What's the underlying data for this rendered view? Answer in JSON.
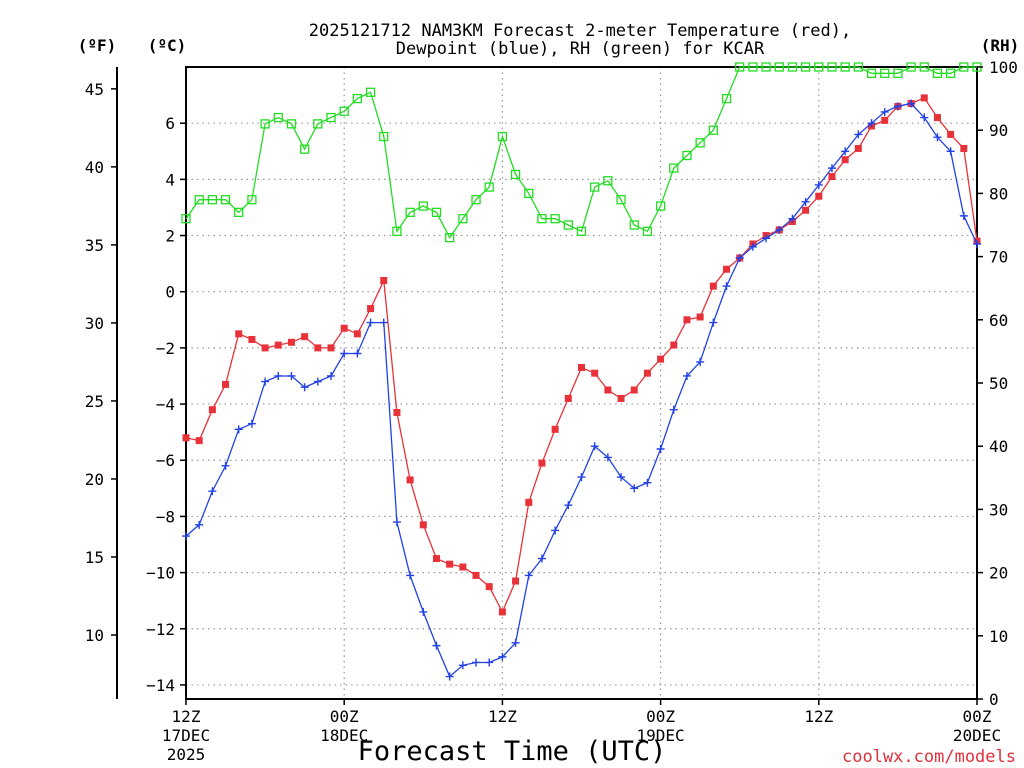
{
  "chart_data": {
    "type": "line",
    "title_line1": "2025121712 NAM3KM Forecast 2-meter Temperature (red),",
    "title_line2": "Dewpoint (blue), RH (green) for KCAR",
    "left_axis_f_label": "(ºF)",
    "left_axis_c_label": "(ºC)",
    "right_axis_label": "(RH)",
    "xlabel": "Forecast Time (UTC)",
    "credit": "coolwx.com/models",
    "xlim_hours": [
      0,
      60
    ],
    "ylim_c": [
      -14.5,
      8.0
    ],
    "rh_lim": [
      0,
      100
    ],
    "f_ticks": [
      "45",
      "40",
      "35",
      "30",
      "25",
      "20",
      "15",
      "10"
    ],
    "c_ticks": [
      "6",
      "4",
      "2",
      "0",
      "−2",
      "−4",
      "−6",
      "−8",
      "−10",
      "−12",
      "−14"
    ],
    "rh_ticks": [
      "100",
      "90",
      "80",
      "70",
      "60",
      "50",
      "40",
      "30",
      "20",
      "10",
      "0"
    ],
    "x_ticks": [
      {
        "hour": 0,
        "line1": "12Z",
        "line2": "17DEC",
        "line3": "2025"
      },
      {
        "hour": 12,
        "line1": "00Z",
        "line2": "18DEC",
        "line3": ""
      },
      {
        "hour": 24,
        "line1": "12Z",
        "line2": "",
        "line3": ""
      },
      {
        "hour": 36,
        "line1": "00Z",
        "line2": "19DEC",
        "line3": ""
      },
      {
        "hour": 48,
        "line1": "12Z",
        "line2": "",
        "line3": ""
      },
      {
        "hour": 60,
        "line1": "00Z",
        "line2": "20DEC",
        "line3": ""
      }
    ],
    "hours": [
      0,
      1,
      2,
      3,
      4,
      5,
      6,
      7,
      8,
      9,
      10,
      11,
      12,
      13,
      14,
      15,
      16,
      17,
      18,
      19,
      20,
      21,
      22,
      23,
      24,
      25,
      26,
      27,
      28,
      29,
      30,
      31,
      32,
      33,
      34,
      35,
      36,
      37,
      38,
      39,
      40,
      41,
      42,
      43,
      44,
      45,
      46,
      47,
      48,
      49,
      50,
      51,
      52,
      53,
      54,
      55,
      56,
      57,
      58,
      59,
      60
    ],
    "series": [
      {
        "name": "2-meter Temperature",
        "color": "#e8323a",
        "marker": "filled-square",
        "units": "C",
        "values": [
          -5.2,
          -5.3,
          -4.2,
          -3.3,
          -1.5,
          -1.7,
          -2.0,
          -1.9,
          -1.8,
          -1.6,
          -2.0,
          -2.0,
          -1.3,
          -1.5,
          -0.6,
          0.4,
          -4.3,
          -6.7,
          -8.3,
          -9.5,
          -9.7,
          -9.8,
          -10.1,
          -10.5,
          -11.4,
          -10.3,
          -7.5,
          -6.1,
          -4.9,
          -3.8,
          -2.7,
          -2.9,
          -3.5,
          -3.8,
          -3.5,
          -2.9,
          -2.4,
          -1.9,
          -1.0,
          -0.9,
          0.2,
          0.8,
          1.2,
          1.7,
          2.0,
          2.2,
          2.5,
          2.9,
          3.4,
          4.1,
          4.7,
          5.1,
          5.9,
          6.1,
          6.6,
          6.7,
          6.9,
          6.2,
          5.6,
          5.1,
          1.8
        ]
      },
      {
        "name": "Dewpoint",
        "color": "#2242e6",
        "marker": "plus",
        "units": "C",
        "values": [
          -8.7,
          -8.3,
          -7.1,
          -6.2,
          -4.9,
          -4.7,
          -3.2,
          -3.0,
          -3.0,
          -3.4,
          -3.2,
          -3.0,
          -2.2,
          -2.2,
          -1.1,
          -1.1,
          -8.2,
          -10.1,
          -11.4,
          -12.6,
          -13.7,
          -13.3,
          -13.2,
          -13.2,
          -13.0,
          -12.5,
          -10.1,
          -9.5,
          -8.5,
          -7.6,
          -6.6,
          -5.5,
          -5.9,
          -6.6,
          -7.0,
          -6.8,
          -5.6,
          -4.2,
          -3.0,
          -2.5,
          -1.1,
          0.2,
          1.2,
          1.6,
          1.9,
          2.2,
          2.6,
          3.2,
          3.8,
          4.4,
          5.0,
          5.6,
          6.0,
          6.4,
          6.6,
          6.7,
          6.2,
          5.5,
          5.0,
          2.7,
          1.7
        ]
      },
      {
        "name": "RH",
        "color": "#22dd22",
        "marker": "open-square",
        "units": "%",
        "values": [
          76,
          79,
          79,
          79,
          77,
          79,
          91,
          92,
          91,
          87,
          91,
          92,
          93,
          95,
          96,
          89,
          74,
          77,
          78,
          77,
          73,
          76,
          79,
          81,
          89,
          83,
          80,
          76,
          76,
          75,
          74,
          81,
          82,
          79,
          75,
          74,
          78,
          84,
          86,
          88,
          90,
          95,
          100,
          100,
          100,
          100,
          100,
          100,
          100,
          100,
          100,
          100,
          99,
          99,
          99,
          100,
          100,
          99,
          99,
          100,
          100
        ]
      }
    ]
  }
}
